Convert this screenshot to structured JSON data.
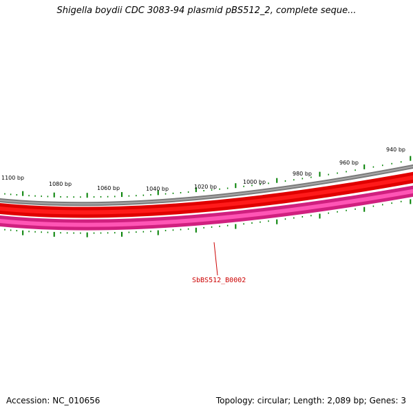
{
  "title": "Shigella boydii CDC 3083-94 plasmid pBS512_2, complete seque...",
  "ticks": [
    {
      "label": "1100 bp"
    },
    {
      "label": "1080 bp"
    },
    {
      "label": "1060 bp"
    },
    {
      "label": "1040 bp"
    },
    {
      "label": "1020 bp"
    },
    {
      "label": "1000 bp"
    },
    {
      "label": "980 bp"
    },
    {
      "label": "960 bp"
    },
    {
      "label": "940 bp"
    }
  ],
  "gene": {
    "label": "SbBS512_B0002"
  },
  "footer": {
    "accession": "Accession: NC_010656",
    "summary": "Topology: circular; Length: 2,089 bp; Genes: 3"
  },
  "colors": {
    "backbone": "#808080",
    "forward_track": "#ff0000",
    "reverse_track": "#ff2aa0",
    "ticks": "#008000",
    "gene_label": "#cc0000"
  }
}
